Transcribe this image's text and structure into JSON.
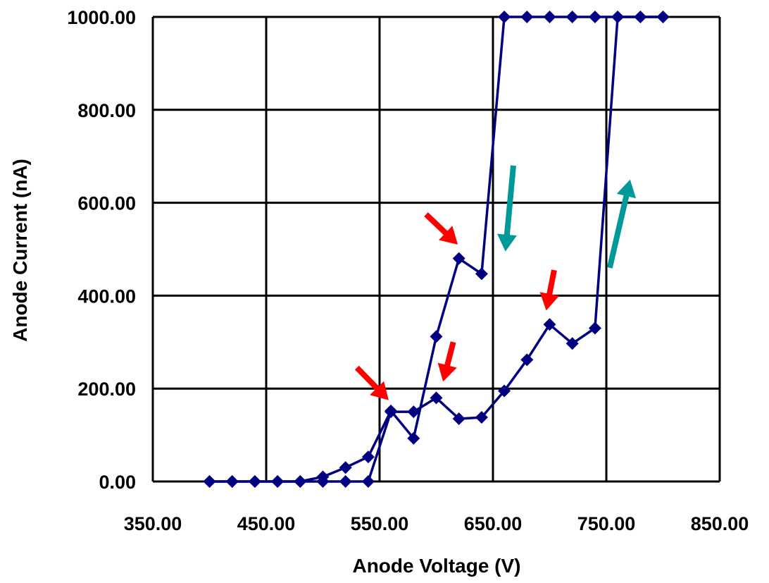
{
  "chart_data": {
    "type": "scatter",
    "title": "",
    "xlabel": "Anode Voltage (V)",
    "ylabel": "Anode Current (nA)",
    "xlim": [
      350,
      850
    ],
    "ylim": [
      0,
      1000
    ],
    "x_ticks": [
      "350.00",
      "450.00",
      "550.00",
      "650.00",
      "750.00",
      "850.00"
    ],
    "y_ticks": [
      "0.00",
      "200.00",
      "400.00",
      "600.00",
      "800.00",
      "1000.00"
    ],
    "grid": true,
    "legend": "none",
    "line_color": "#000080",
    "marker": "diamond",
    "series": [
      {
        "x": [
          400,
          420,
          440,
          460,
          480,
          500,
          520,
          540,
          560,
          580,
          600,
          620,
          640,
          660,
          680,
          700,
          720,
          740,
          760,
          780,
          800
        ],
        "y": [
          0,
          0,
          0,
          0,
          0,
          0,
          0,
          0,
          150,
          150,
          180,
          135,
          138,
          195,
          262,
          338,
          297,
          330,
          1000,
          1000,
          1000
        ]
      },
      {
        "x": [
          800,
          780,
          760,
          740,
          720,
          700,
          680,
          660,
          640,
          620,
          600,
          580,
          560,
          540,
          520,
          500,
          480,
          460,
          440,
          420,
          400
        ],
        "y": [
          1000,
          1000,
          1000,
          1000,
          1000,
          1000,
          1000,
          1000,
          447,
          480,
          312,
          93,
          152,
          53,
          30,
          10,
          0,
          0,
          0,
          0,
          0
        ]
      }
    ],
    "annotations": [
      {
        "type": "arrow",
        "color": "#ff0000",
        "from": [
          530,
          245
        ],
        "to": [
          558,
          175
        ]
      },
      {
        "type": "arrow",
        "color": "#ff0000",
        "from": [
          615,
          300
        ],
        "to": [
          606,
          215
        ]
      },
      {
        "type": "arrow",
        "color": "#ff0000",
        "from": [
          591,
          575
        ],
        "to": [
          619,
          510
        ]
      },
      {
        "type": "arrow",
        "color": "#ff0000",
        "from": [
          704,
          455
        ],
        "to": [
          697,
          368
        ]
      },
      {
        "type": "arrow",
        "color": "#009999",
        "from": [
          668,
          680
        ],
        "to": [
          661,
          495
        ]
      },
      {
        "type": "arrow",
        "color": "#009999",
        "from": [
          753,
          460
        ],
        "to": [
          771,
          650
        ]
      }
    ]
  }
}
